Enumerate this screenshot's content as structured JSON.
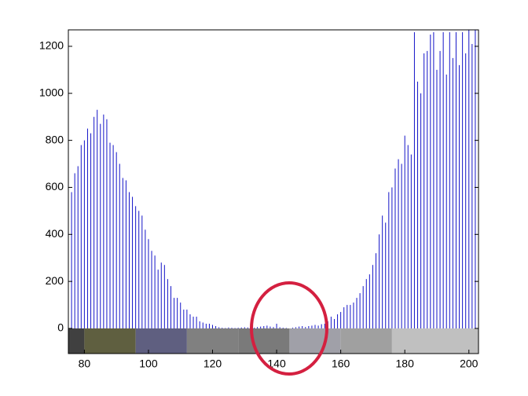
{
  "chart_data": {
    "type": "stem",
    "color": "#1414c8",
    "x": [
      75,
      76,
      77,
      78,
      79,
      80,
      81,
      82,
      83,
      84,
      85,
      86,
      87,
      88,
      89,
      90,
      91,
      92,
      93,
      94,
      95,
      96,
      97,
      98,
      99,
      100,
      101,
      102,
      103,
      104,
      105,
      106,
      107,
      108,
      109,
      110,
      111,
      112,
      113,
      114,
      115,
      116,
      117,
      118,
      119,
      120,
      121,
      122,
      123,
      124,
      125,
      126,
      127,
      128,
      129,
      130,
      131,
      132,
      133,
      134,
      135,
      136,
      137,
      138,
      139,
      140,
      141,
      142,
      143,
      144,
      145,
      146,
      147,
      148,
      149,
      150,
      151,
      152,
      153,
      154,
      155,
      156,
      157,
      158,
      159,
      160,
      161,
      162,
      163,
      164,
      165,
      166,
      167,
      168,
      169,
      170,
      171,
      172,
      173,
      174,
      175,
      176,
      177,
      178,
      179,
      180,
      181,
      182,
      183,
      184,
      185,
      186,
      187,
      188,
      189,
      190,
      191,
      192,
      193,
      194,
      195,
      196,
      197,
      198,
      199,
      200,
      201,
      202
    ],
    "values": [
      560,
      580,
      660,
      690,
      780,
      800,
      850,
      830,
      900,
      930,
      870,
      910,
      890,
      790,
      780,
      750,
      700,
      640,
      630,
      580,
      560,
      520,
      500,
      480,
      420,
      380,
      330,
      310,
      250,
      280,
      270,
      210,
      180,
      130,
      130,
      110,
      80,
      80,
      60,
      50,
      50,
      30,
      25,
      20,
      20,
      15,
      10,
      5,
      3,
      2,
      4,
      3,
      2,
      3,
      4,
      5,
      4,
      5,
      3,
      6,
      8,
      10,
      12,
      8,
      6,
      20,
      5,
      3,
      2,
      0,
      3,
      5,
      8,
      10,
      6,
      10,
      12,
      15,
      12,
      18,
      20,
      30,
      50,
      40,
      60,
      70,
      90,
      100,
      100,
      110,
      130,
      150,
      180,
      210,
      230,
      270,
      320,
      400,
      480,
      450,
      580,
      600,
      680,
      720,
      700,
      820,
      780,
      740,
      1260,
      1050,
      1000,
      1170,
      1180,
      1250,
      1260,
      1100,
      1180,
      1260,
      1080,
      1260,
      1150,
      1260,
      1120,
      1260,
      1170,
      1270,
      1210,
      1270
    ],
    "xlim": [
      75,
      203
    ],
    "ylim": [
      0,
      1270
    ],
    "xticks": [
      80,
      100,
      120,
      140,
      160,
      180,
      200
    ],
    "yticks": [
      0,
      200,
      400,
      600,
      800,
      1000,
      1200
    ],
    "colorbar": {
      "edges": [
        75,
        80,
        96,
        112,
        128,
        144,
        160,
        176,
        203
      ],
      "colors": [
        "#404040",
        "#5f5f40",
        "#5f5f80",
        "#808080",
        "#7a7a7a",
        "#a0a0a8",
        "#a0a0a0",
        "#c0c0c0"
      ]
    }
  }
}
